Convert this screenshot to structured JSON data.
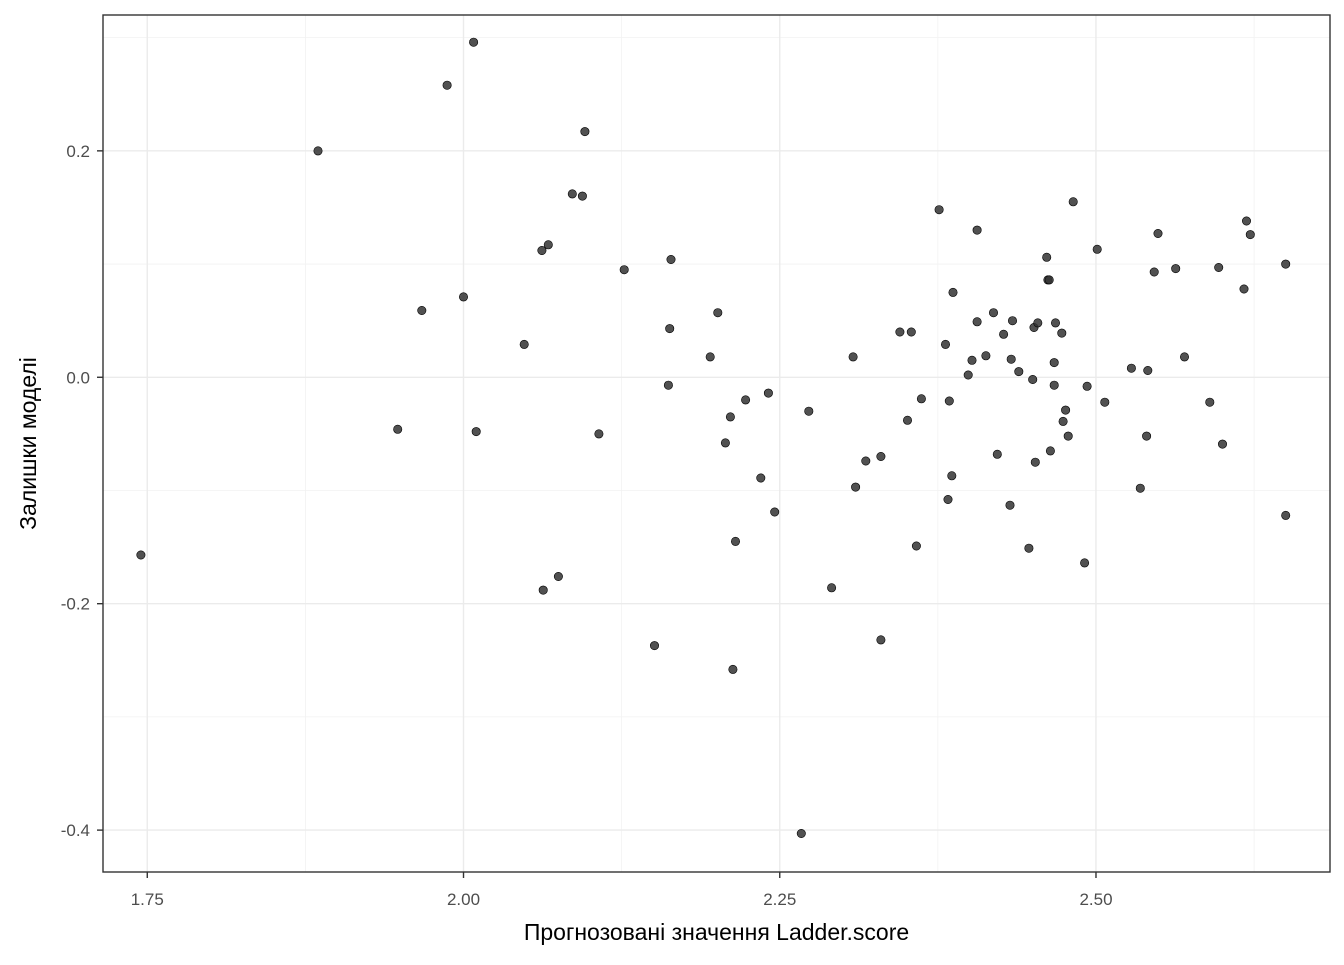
{
  "chart_data": {
    "type": "scatter",
    "title": "",
    "xlabel": "Прогнозовані значення Ladder.score",
    "ylabel": "Залишки моделі",
    "xlim": [
      1.715,
      2.685
    ],
    "ylim": [
      -0.437,
      0.32
    ],
    "x_ticks": [
      1.75,
      2.0,
      2.25,
      2.5
    ],
    "x_tick_labels": [
      "1.75",
      "2.00",
      "2.25",
      "2.50"
    ],
    "y_ticks": [
      -0.4,
      -0.2,
      0.0,
      0.2
    ],
    "y_tick_labels": [
      "-0.4",
      "-0.2",
      "0.0",
      "0.2"
    ],
    "x_minor": [
      1.875,
      2.125,
      2.375,
      2.625
    ],
    "y_minor": [
      -0.3,
      -0.1,
      0.1,
      0.3
    ],
    "grid": true,
    "point_color": "#333333",
    "points": [
      [
        1.745,
        -0.157
      ],
      [
        1.885,
        0.2
      ],
      [
        1.948,
        -0.046
      ],
      [
        1.967,
        0.059
      ],
      [
        1.987,
        0.258
      ],
      [
        2.0,
        0.071
      ],
      [
        2.008,
        0.296
      ],
      [
        2.01,
        -0.048
      ],
      [
        2.048,
        0.029
      ],
      [
        2.062,
        0.112
      ],
      [
        2.063,
        -0.188
      ],
      [
        2.067,
        0.117
      ],
      [
        2.075,
        -0.176
      ],
      [
        2.086,
        0.162
      ],
      [
        2.094,
        0.16
      ],
      [
        2.096,
        0.217
      ],
      [
        2.107,
        -0.05
      ],
      [
        2.127,
        0.095
      ],
      [
        2.151,
        -0.237
      ],
      [
        2.162,
        -0.007
      ],
      [
        2.163,
        0.043
      ],
      [
        2.164,
        0.104
      ],
      [
        2.195,
        0.018
      ],
      [
        2.201,
        0.057
      ],
      [
        2.207,
        -0.058
      ],
      [
        2.211,
        -0.035
      ],
      [
        2.213,
        -0.258
      ],
      [
        2.215,
        -0.145
      ],
      [
        2.223,
        -0.02
      ],
      [
        2.235,
        -0.089
      ],
      [
        2.241,
        -0.014
      ],
      [
        2.246,
        -0.119
      ],
      [
        2.267,
        -0.403
      ],
      [
        2.273,
        -0.03
      ],
      [
        2.291,
        -0.186
      ],
      [
        2.308,
        0.018
      ],
      [
        2.31,
        -0.097
      ],
      [
        2.318,
        -0.074
      ],
      [
        2.33,
        -0.07
      ],
      [
        2.33,
        -0.232
      ],
      [
        2.345,
        0.04
      ],
      [
        2.351,
        -0.038
      ],
      [
        2.354,
        0.04
      ],
      [
        2.358,
        -0.149
      ],
      [
        2.362,
        -0.019
      ],
      [
        2.376,
        0.148
      ],
      [
        2.381,
        0.029
      ],
      [
        2.383,
        -0.108
      ],
      [
        2.384,
        -0.021
      ],
      [
        2.386,
        -0.087
      ],
      [
        2.387,
        0.075
      ],
      [
        2.399,
        0.002
      ],
      [
        2.402,
        0.015
      ],
      [
        2.406,
        0.049
      ],
      [
        2.406,
        0.13
      ],
      [
        2.413,
        0.019
      ],
      [
        2.419,
        0.057
      ],
      [
        2.422,
        -0.068
      ],
      [
        2.427,
        0.038
      ],
      [
        2.432,
        -0.113
      ],
      [
        2.433,
        0.016
      ],
      [
        2.434,
        0.05
      ],
      [
        2.439,
        0.005
      ],
      [
        2.447,
        -0.151
      ],
      [
        2.45,
        -0.002
      ],
      [
        2.451,
        0.044
      ],
      [
        2.452,
        -0.075
      ],
      [
        2.454,
        0.048
      ],
      [
        2.461,
        0.106
      ],
      [
        2.462,
        0.086
      ],
      [
        2.463,
        0.086
      ],
      [
        2.464,
        -0.065
      ],
      [
        2.467,
        0.013
      ],
      [
        2.467,
        -0.007
      ],
      [
        2.468,
        0.048
      ],
      [
        2.473,
        0.039
      ],
      [
        2.474,
        -0.039
      ],
      [
        2.476,
        -0.029
      ],
      [
        2.478,
        -0.052
      ],
      [
        2.482,
        0.155
      ],
      [
        2.491,
        -0.164
      ],
      [
        2.493,
        -0.008
      ],
      [
        2.501,
        0.113
      ],
      [
        2.507,
        -0.022
      ],
      [
        2.528,
        0.008
      ],
      [
        2.535,
        -0.098
      ],
      [
        2.54,
        -0.052
      ],
      [
        2.541,
        0.006
      ],
      [
        2.546,
        0.093
      ],
      [
        2.549,
        0.127
      ],
      [
        2.563,
        0.096
      ],
      [
        2.57,
        0.018
      ],
      [
        2.59,
        -0.022
      ],
      [
        2.597,
        0.097
      ],
      [
        2.6,
        -0.059
      ],
      [
        2.617,
        0.078
      ],
      [
        2.619,
        0.138
      ],
      [
        2.622,
        0.126
      ],
      [
        2.65,
        0.1
      ],
      [
        2.65,
        -0.122
      ]
    ]
  }
}
